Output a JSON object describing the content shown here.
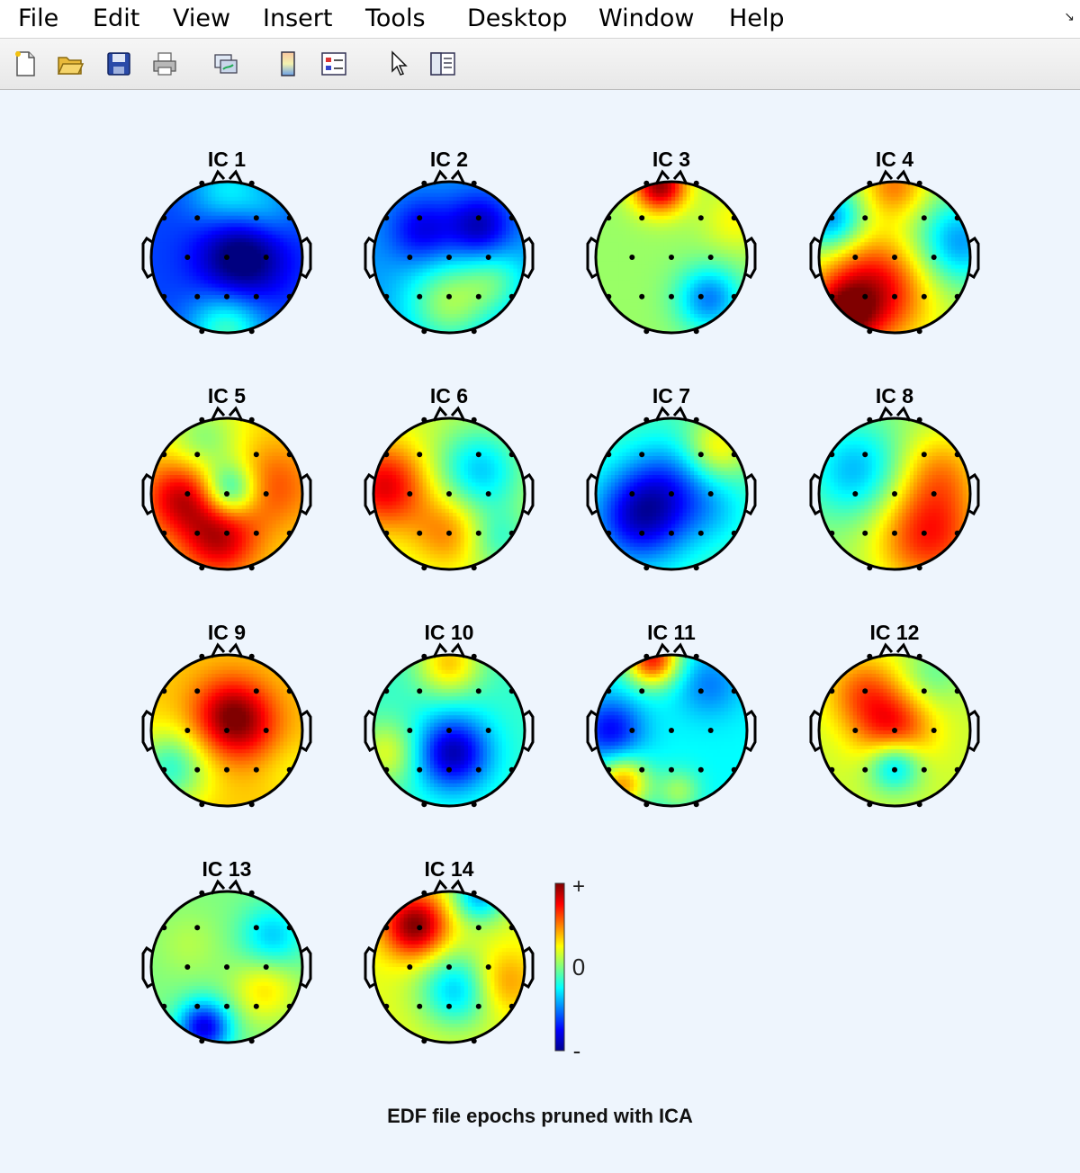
{
  "menubar": {
    "items": [
      "File",
      "Edit",
      "View",
      "Insert",
      "Tools",
      "Desktop",
      "Window",
      "Help"
    ]
  },
  "toolbar": {
    "icons": [
      "new-figure-icon",
      "open-file-icon",
      "save-icon",
      "print-icon",
      "link-plot-icon",
      "colorbar-icon",
      "legend-icon",
      "pointer-icon",
      "property-inspector-icon"
    ]
  },
  "colors": {
    "background": "#eef5fd",
    "jet_low": "#00008f",
    "jet_mid": "#80ff80",
    "jet_high": "#800000"
  },
  "colorbar": {
    "plus": "+",
    "zero": "0",
    "minus": "-"
  },
  "figure": {
    "title": "EDF file epochs pruned with ICA"
  },
  "components": [
    {
      "label": "IC 1",
      "base": -0.62,
      "blobs": [
        [
          0.2,
          0.0,
          -0.5,
          0.4
        ],
        [
          0.0,
          0.95,
          0.5,
          0.35
        ],
        [
          0.0,
          -0.85,
          0.35,
          0.35
        ],
        [
          0.55,
          -0.6,
          0.2,
          0.3
        ]
      ]
    },
    {
      "label": "IC 2",
      "base": -0.45,
      "blobs": [
        [
          -0.35,
          -0.35,
          -0.35,
          0.3
        ],
        [
          0.4,
          -0.4,
          -0.45,
          0.3
        ],
        [
          0.0,
          0.6,
          0.5,
          0.4
        ],
        [
          0.6,
          0.3,
          0.3,
          0.3
        ]
      ]
    },
    {
      "label": "IC 3",
      "base": 0.05,
      "blobs": [
        [
          -0.15,
          -0.95,
          0.9,
          0.25
        ],
        [
          0.5,
          0.55,
          -0.55,
          0.3
        ],
        [
          0.85,
          -0.5,
          0.2,
          0.3
        ]
      ]
    },
    {
      "label": "IC 4",
      "base": 0.1,
      "blobs": [
        [
          -0.3,
          0.45,
          0.75,
          0.5
        ],
        [
          -0.7,
          0.8,
          0.6,
          0.3
        ],
        [
          0.85,
          -0.2,
          -0.55,
          0.4
        ],
        [
          -0.85,
          -0.5,
          -0.6,
          0.3
        ],
        [
          0.0,
          -0.95,
          0.4,
          0.3
        ]
      ]
    },
    {
      "label": "IC 5",
      "base": 0.3,
      "blobs": [
        [
          -0.6,
          0.05,
          0.55,
          0.35
        ],
        [
          -0.1,
          0.6,
          0.55,
          0.35
        ],
        [
          0.05,
          -0.05,
          -0.6,
          0.25
        ],
        [
          -0.3,
          -0.7,
          -0.3,
          0.35
        ],
        [
          0.6,
          -0.1,
          0.3,
          0.4
        ]
      ]
    },
    {
      "label": "IC 6",
      "base": 0.15,
      "blobs": [
        [
          -0.85,
          -0.1,
          0.65,
          0.4
        ],
        [
          0.4,
          -0.3,
          -0.5,
          0.4
        ],
        [
          0.0,
          0.5,
          0.35,
          0.35
        ],
        [
          0.65,
          0.6,
          -0.3,
          0.3
        ]
      ]
    },
    {
      "label": "IC 7",
      "base": -0.1,
      "blobs": [
        [
          -0.4,
          0.3,
          -0.75,
          0.45
        ],
        [
          0.0,
          -0.2,
          -0.3,
          0.4
        ],
        [
          0.6,
          -0.6,
          0.4,
          0.3
        ],
        [
          0.55,
          0.2,
          -0.2,
          0.35
        ]
      ]
    },
    {
      "label": "IC 8",
      "base": 0.05,
      "blobs": [
        [
          0.45,
          0.55,
          0.65,
          0.5
        ],
        [
          0.6,
          -0.3,
          0.35,
          0.4
        ],
        [
          -0.5,
          -0.3,
          -0.45,
          0.45
        ]
      ]
    },
    {
      "label": "IC 9",
      "base": 0.35,
      "blobs": [
        [
          0.05,
          -0.2,
          0.55,
          0.35
        ],
        [
          -0.75,
          0.5,
          -0.5,
          0.35
        ],
        [
          0.85,
          0.5,
          -0.1,
          0.3
        ],
        [
          0.3,
          0.0,
          0.2,
          0.35
        ]
      ]
    },
    {
      "label": "IC 10",
      "base": -0.15,
      "blobs": [
        [
          0.05,
          0.3,
          -0.75,
          0.35
        ],
        [
          0.0,
          -0.9,
          0.5,
          0.3
        ],
        [
          -0.8,
          0.3,
          0.35,
          0.3
        ]
      ]
    },
    {
      "label": "IC 11",
      "base": -0.25,
      "blobs": [
        [
          -0.25,
          -0.95,
          0.95,
          0.25
        ],
        [
          -0.65,
          0.7,
          0.7,
          0.25
        ],
        [
          -0.8,
          0.0,
          -0.5,
          0.3
        ],
        [
          0.5,
          -0.6,
          -0.25,
          0.3
        ],
        [
          0.1,
          0.8,
          0.3,
          0.2
        ]
      ]
    },
    {
      "label": "IC 12",
      "base": 0.15,
      "blobs": [
        [
          0.0,
          0.0,
          0.55,
          0.35
        ],
        [
          -0.4,
          -0.5,
          0.4,
          0.35
        ],
        [
          0.0,
          0.45,
          -0.6,
          0.25
        ],
        [
          0.5,
          -0.75,
          -0.2,
          0.3
        ]
      ]
    },
    {
      "label": "IC 13",
      "base": 0.0,
      "blobs": [
        [
          -0.3,
          0.8,
          -0.8,
          0.25
        ],
        [
          0.6,
          -0.4,
          -0.35,
          0.3
        ],
        [
          0.5,
          0.3,
          0.3,
          0.3
        ],
        [
          -0.5,
          -0.3,
          0.1,
          0.3
        ]
      ]
    },
    {
      "label": "IC 14",
      "base": 0.2,
      "blobs": [
        [
          -0.45,
          -0.55,
          0.8,
          0.3
        ],
        [
          0.1,
          0.3,
          -0.55,
          0.35
        ],
        [
          0.4,
          -0.95,
          -0.6,
          0.25
        ],
        [
          0.7,
          0.2,
          0.3,
          0.3
        ]
      ]
    }
  ]
}
